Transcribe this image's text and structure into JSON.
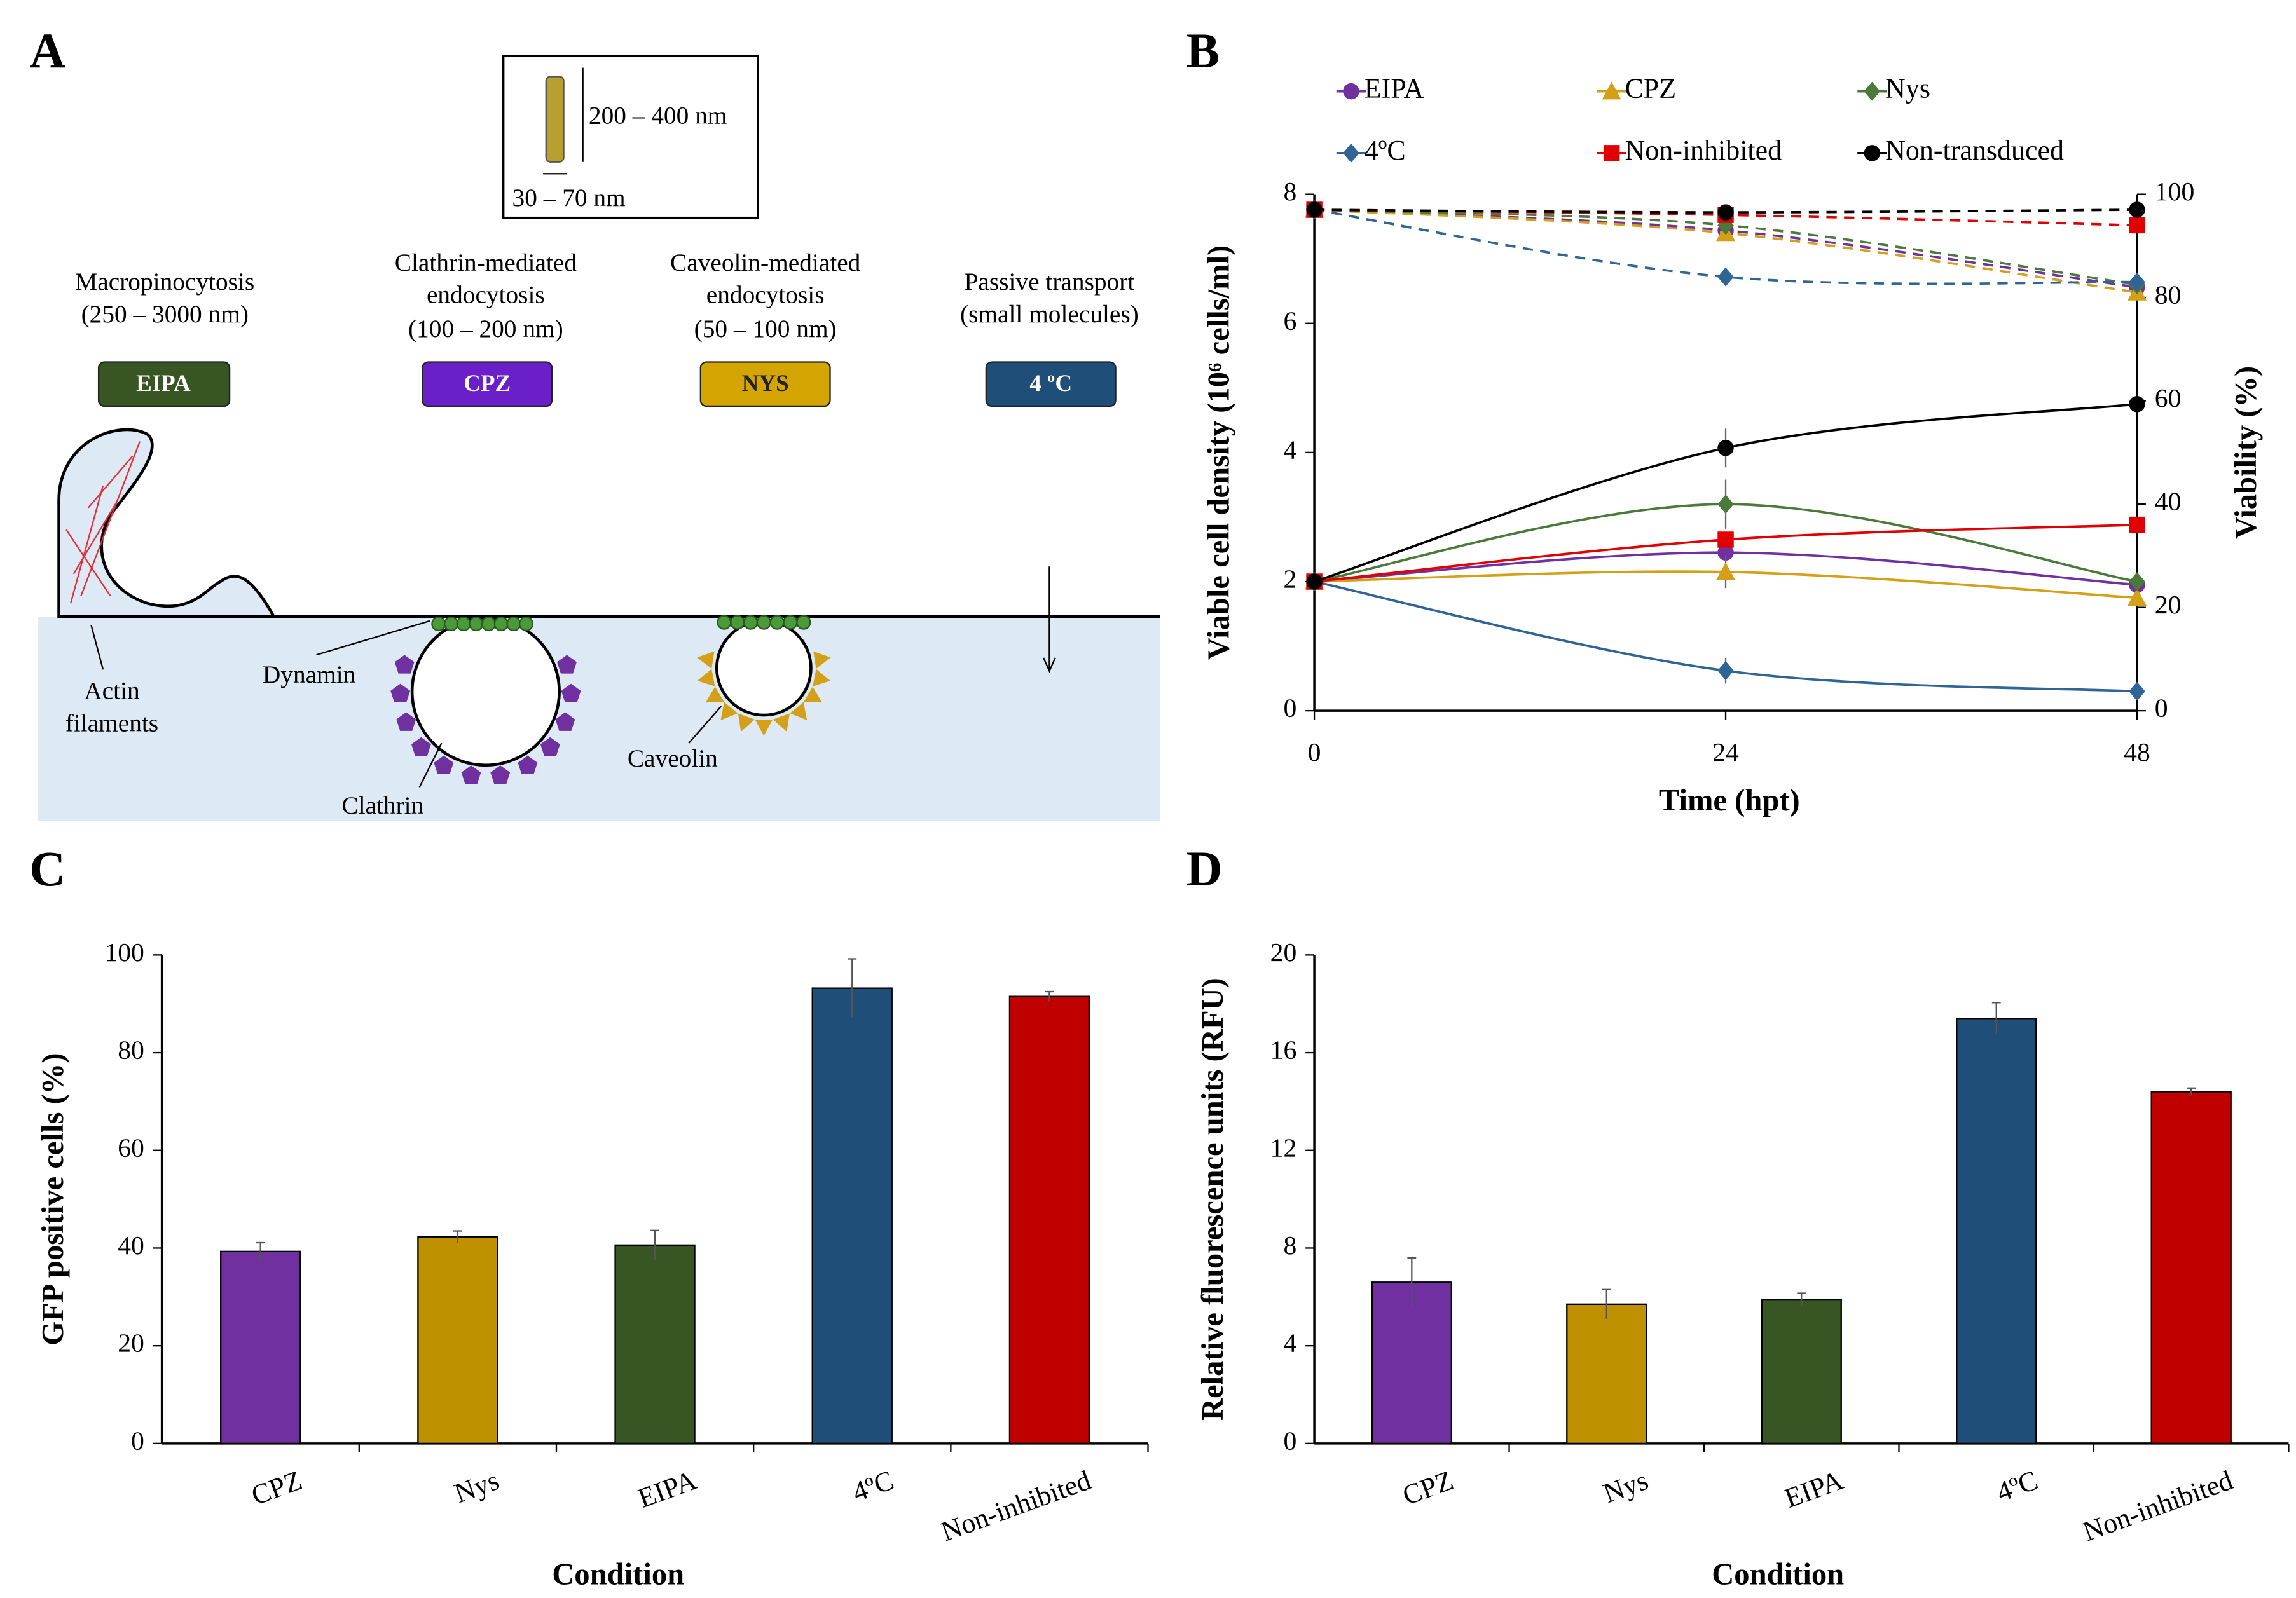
{
  "diagram": {
    "panel_labels": [
      "A",
      "B",
      "C",
      "D"
    ],
    "inset": {
      "length": "200 – 400 nm",
      "width": "30 – 70 nm"
    },
    "pathways": [
      {
        "lines": [
          "Macropinocytosis",
          "(250 – 3000 nm)"
        ],
        "inhibitor": "EIPA"
      },
      {
        "lines": [
          "Clathrin-mediated",
          "endocytosis",
          "(100 – 200 nm)"
        ],
        "inhibitor": "CPZ"
      },
      {
        "lines": [
          "Caveolin-mediated",
          "endocytosis",
          "(50 – 100 nm)"
        ],
        "inhibitor": "NYS"
      },
      {
        "lines": [
          "Passive transport",
          "(small molecules)"
        ],
        "inhibitor": "4 ºC"
      }
    ],
    "annotations": {
      "actin": [
        "Actin",
        "filaments"
      ],
      "dynamin": "Dynamin",
      "clathrin": "Clathrin",
      "caveolin": "Caveolin"
    }
  },
  "chart_data": [
    {
      "type": "line",
      "x_label": "Time (hpt)",
      "y_label": "Viable cell density (10⁶ cells/ml)",
      "y2_label": "Viability (%)",
      "x": [
        0,
        24,
        48
      ],
      "xlim": [
        0,
        48
      ],
      "xticks": [
        0,
        24,
        48
      ],
      "ylim": [
        0,
        8
      ],
      "yticks": [
        0,
        2,
        4,
        6,
        8
      ],
      "y2lim": [
        0,
        100
      ],
      "y2ticks": [
        0,
        20,
        40,
        60,
        80,
        100
      ],
      "series": [
        {
          "name": "EIPA",
          "color": "#7030a0",
          "marker": "circle",
          "values": [
            2.0,
            2.45,
            1.95
          ],
          "errors": [
            0,
            0.1,
            0
          ],
          "viability": [
            97,
            93,
            82
          ]
        },
        {
          "name": "CPZ",
          "color": "#d4a017",
          "marker": "triangle",
          "values": [
            2.0,
            2.15,
            1.75
          ],
          "errors": [
            0,
            0.25,
            0
          ],
          "viability": [
            97,
            92.5,
            81
          ]
        },
        {
          "name": "Nys",
          "color": "#4a7a3a",
          "marker": "diamond",
          "values": [
            2.0,
            3.2,
            2.0
          ],
          "errors": [
            0,
            0.38,
            0
          ],
          "viability": [
            97,
            94,
            82.5
          ]
        },
        {
          "name": "4ºC",
          "color": "#2e6496",
          "marker": "diamond",
          "values": [
            2.0,
            0.62,
            0.3
          ],
          "errors": [
            0,
            0.2,
            0
          ],
          "viability": [
            97,
            84,
            83
          ]
        },
        {
          "name": "Non-inhibited",
          "color": "#e00000",
          "marker": "square",
          "values": [
            2.0,
            2.65,
            2.88
          ],
          "errors": [
            0,
            0.1,
            0
          ],
          "viability": [
            97,
            96,
            94
          ]
        },
        {
          "name": "Non-transduced",
          "color": "#000000",
          "marker": "circle",
          "values": [
            2.0,
            4.07,
            4.75
          ],
          "errors": [
            0,
            0.3,
            0
          ],
          "viability": [
            97,
            96.5,
            97
          ]
        }
      ]
    },
    {
      "type": "bar",
      "x_label": "Condition",
      "y_label": "GFP positive cells (%)",
      "categories": [
        "CPZ",
        "Nys",
        "EIPA",
        "4ºC",
        "Non-inhibited"
      ],
      "values": [
        39.3,
        42.3,
        40.6,
        93.2,
        91.5
      ],
      "errors": [
        1.8,
        1.2,
        3,
        6,
        1
      ],
      "colors": [
        "#7030a0",
        "#bf9000",
        "#375623",
        "#1f4e79",
        "#c00000"
      ],
      "ylim": [
        0,
        100
      ],
      "yticks": [
        0,
        20,
        40,
        60,
        80,
        100
      ]
    },
    {
      "type": "bar",
      "x_label": "Condition",
      "y_label": "Relative fluorescence units (RFU)",
      "categories": [
        "CPZ",
        "Nys",
        "EIPA",
        "4ºC",
        "Non-inhibited"
      ],
      "values": [
        6.6,
        5.7,
        5.9,
        17.4,
        14.4
      ],
      "errors": [
        1,
        0.6,
        0.25,
        0.65,
        0.15
      ],
      "colors": [
        "#7030a0",
        "#bf9000",
        "#375623",
        "#1f4e79",
        "#c00000"
      ],
      "ylim": [
        0,
        20
      ],
      "yticks": [
        0,
        4,
        8,
        12,
        16,
        20
      ]
    }
  ]
}
